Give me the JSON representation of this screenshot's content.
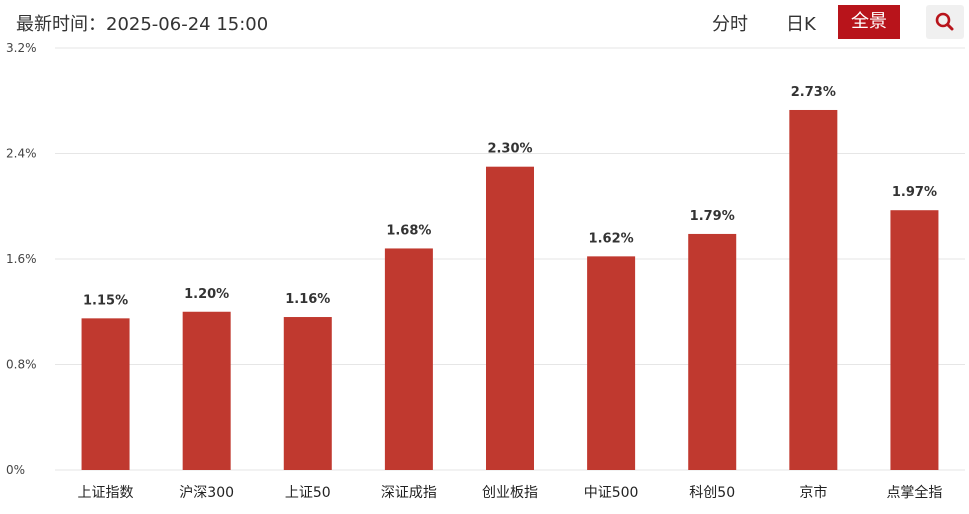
{
  "header": {
    "update_time": "最新时间：2025-06-24 15:00",
    "tabs": [
      {
        "label": "分时",
        "active": false
      },
      {
        "label": "日K",
        "active": false
      },
      {
        "label": "全景",
        "active": true
      }
    ],
    "search_icon": "search-icon"
  },
  "colors": {
    "bar": "#c0392f",
    "active_tab": "#b8141b",
    "grid": "#e6e6e6"
  },
  "chart_data": {
    "type": "bar",
    "title": "",
    "xlabel": "",
    "ylabel": "",
    "ylim": [
      0,
      3.2
    ],
    "yticks": [
      "0%",
      "0.8%",
      "1.6%",
      "2.4%",
      "3.2%"
    ],
    "ytick_values": [
      0,
      0.8,
      1.6,
      2.4,
      3.2
    ],
    "grid": true,
    "categories": [
      "上证指数",
      "沪深300",
      "上证50",
      "深证成指",
      "创业板指",
      "中证500",
      "科创50",
      "京市",
      "点掌全指"
    ],
    "values": [
      1.15,
      1.2,
      1.16,
      1.68,
      2.3,
      1.62,
      1.79,
      2.73,
      1.97
    ],
    "value_labels": [
      "1.15%",
      "1.20%",
      "1.16%",
      "1.68%",
      "2.30%",
      "1.62%",
      "1.79%",
      "2.73%",
      "1.97%"
    ]
  }
}
